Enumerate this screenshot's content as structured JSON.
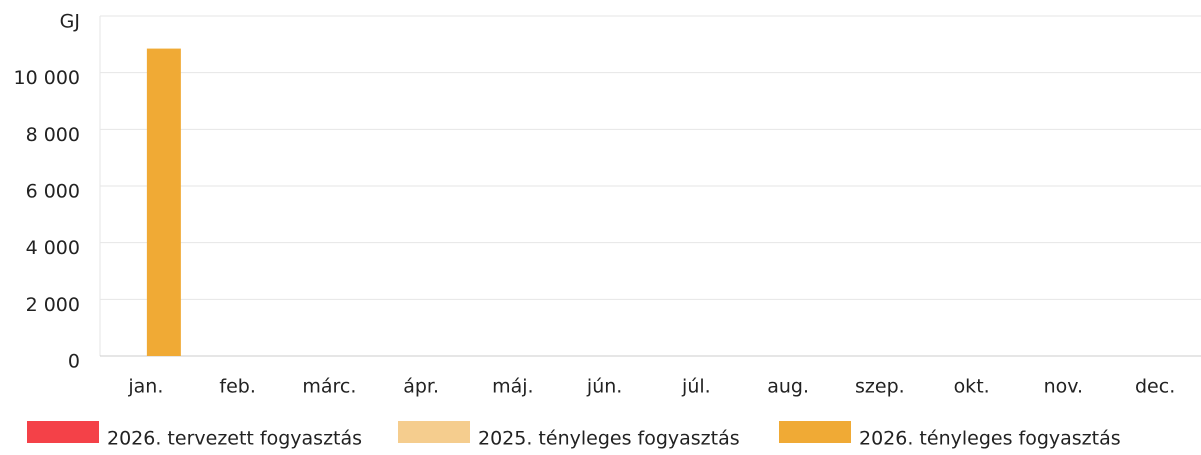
{
  "chart_data": {
    "type": "bar",
    "y_label": "GJ",
    "categories": [
      "jan.",
      "feb.",
      "márc.",
      "ápr.",
      "máj.",
      "jún.",
      "júl.",
      "aug.",
      "szep.",
      "okt.",
      "nov.",
      "dec."
    ],
    "series": [
      {
        "name": "2026. tervezett fogyasztás",
        "color": "#f44148",
        "values": [
          null,
          null,
          null,
          null,
          null,
          null,
          null,
          null,
          null,
          null,
          null,
          null
        ]
      },
      {
        "name": "2025. tényleges fogyasztás",
        "color": "#f5cd8e",
        "values": [
          null,
          null,
          null,
          null,
          null,
          null,
          null,
          null,
          null,
          null,
          null,
          null
        ]
      },
      {
        "name": "2026. tényleges fogyasztás",
        "color": "#f0aa35",
        "values": [
          10850,
          null,
          null,
          null,
          null,
          null,
          null,
          null,
          null,
          null,
          null,
          null
        ]
      }
    ],
    "ylim": [
      0,
      12000
    ],
    "yticks": [
      0,
      {
        "value": 2000,
        "label": "2 000"
      },
      {
        "value": 4000,
        "label": "4 000"
      },
      {
        "value": 6000,
        "label": "6 000"
      },
      {
        "value": 8000,
        "label": "8 000"
      },
      {
        "value": 10000,
        "label": "10 000"
      }
    ],
    "grid": true
  }
}
